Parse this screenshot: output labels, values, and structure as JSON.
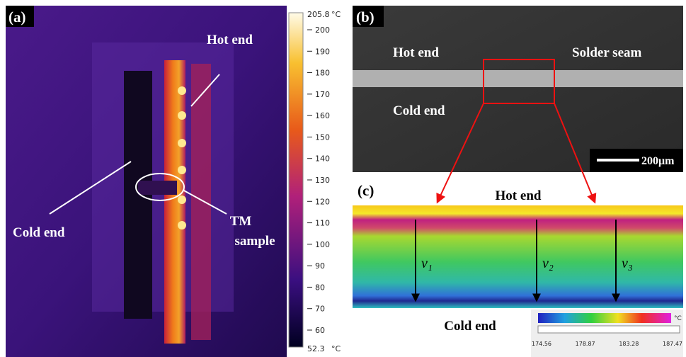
{
  "panel_a": {
    "label": "(a)",
    "hot_end": "Hot end",
    "cold_end": "Cold end",
    "sample_line1": "TM",
    "sample_line2": "sample",
    "colorbar": {
      "max": "205.8",
      "min": "52.3",
      "unit_top": "°C",
      "unit_bottom": "°C",
      "ticks": [
        "200",
        "190",
        "180",
        "170",
        "160",
        "150",
        "140",
        "130",
        "120",
        "110",
        "100",
        "90",
        "80",
        "70",
        "60"
      ]
    }
  },
  "panel_b": {
    "label": "(b)",
    "hot_end": "Hot end",
    "solder_seam": "Solder seam",
    "cold_end": "Cold end",
    "scale_bar": "200μm"
  },
  "panel_c": {
    "label": "(c)",
    "hot_end": "Hot end",
    "cold_end": "Cold end",
    "arrows": [
      "ν₁",
      "ν₂",
      "ν₃"
    ],
    "colorbar": {
      "unit": "°C",
      "ticks": [
        "174.56",
        "178.87",
        "183.28",
        "187.47"
      ]
    }
  }
}
